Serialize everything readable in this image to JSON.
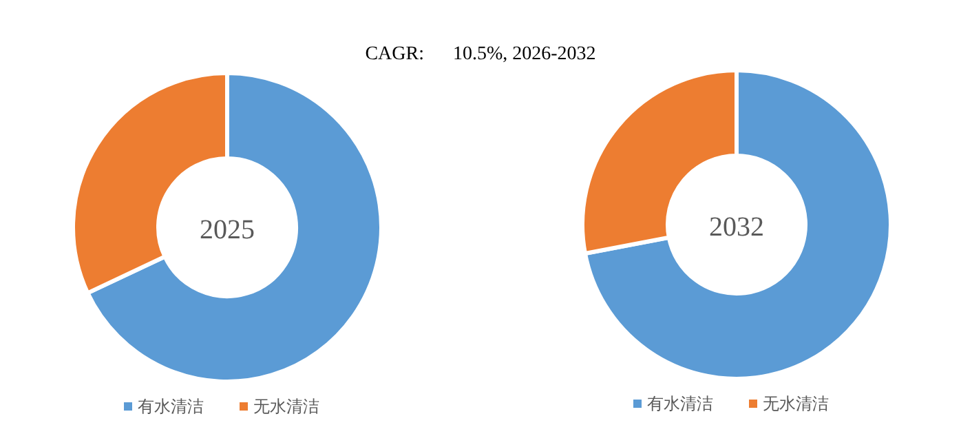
{
  "chart_data": [
    {
      "type": "donut",
      "title": "2025",
      "annotations": [
        "CAGR:      10.5%, 2026-2032"
      ],
      "categories": [
        "有水清洁",
        "无水清洁"
      ],
      "values": [
        68,
        32
      ],
      "colors": [
        "#5b9bd5",
        "#ed7d31"
      ],
      "legend": "bottom"
    },
    {
      "type": "donut",
      "title": "2032",
      "categories": [
        "有水清洁",
        "无水清洁"
      ],
      "values": [
        72,
        28
      ],
      "colors": [
        "#5b9bd5",
        "#ed7d31"
      ],
      "legend": "bottom"
    }
  ]
}
